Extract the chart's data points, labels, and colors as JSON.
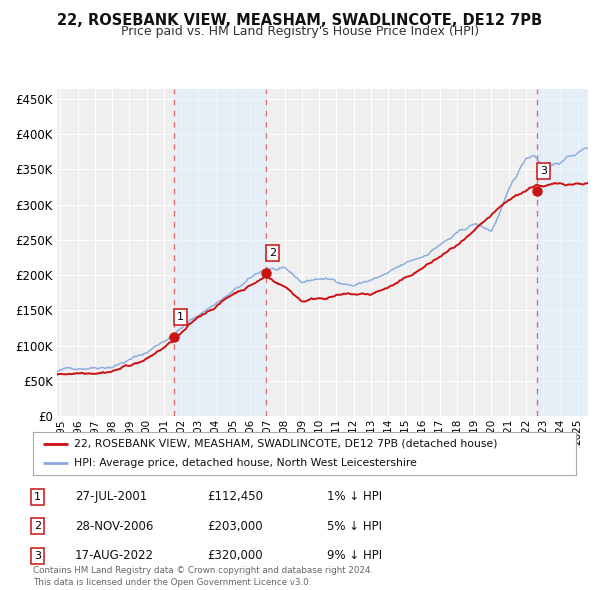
{
  "title": "22, ROSEBANK VIEW, MEASHAM, SWADLINCOTE, DE12 7PB",
  "subtitle": "Price paid vs. HM Land Registry's House Price Index (HPI)",
  "title_fontsize": 10.5,
  "subtitle_fontsize": 9.0,
  "bg_color": "#ffffff",
  "plot_bg_color": "#efefef",
  "grid_color": "#ffffff",
  "ytick_vals": [
    0,
    50000,
    100000,
    150000,
    200000,
    250000,
    300000,
    350000,
    400000,
    450000
  ],
  "ylim": [
    0,
    465000
  ],
  "xlim_start": 1994.8,
  "xlim_end": 2025.6,
  "xtick_years": [
    1995,
    1996,
    1997,
    1998,
    1999,
    2000,
    2001,
    2002,
    2003,
    2004,
    2005,
    2006,
    2007,
    2008,
    2009,
    2010,
    2011,
    2012,
    2013,
    2014,
    2015,
    2016,
    2017,
    2018,
    2019,
    2020,
    2021,
    2022,
    2023,
    2024,
    2025
  ],
  "sale_dates": [
    2001.573,
    2006.913,
    2022.633
  ],
  "sale_prices": [
    112450,
    203000,
    320000
  ],
  "sale_labels": [
    "1",
    "2",
    "3"
  ],
  "vline_color": "#dd4444",
  "vline_alpha": 0.75,
  "shade_color": "#ddeeff",
  "shade_alpha": 0.55,
  "red_line_color": "#cc1111",
  "blue_line_color": "#88aadd",
  "legend_label_red": "22, ROSEBANK VIEW, MEASHAM, SWADLINCOTE, DE12 7PB (detached house)",
  "legend_label_blue": "HPI: Average price, detached house, North West Leicestershire",
  "table_rows": [
    {
      "num": "1",
      "date": "27-JUL-2001",
      "price": "£112,450",
      "hpi": "1% ↓ HPI"
    },
    {
      "num": "2",
      "date": "28-NOV-2006",
      "price": "£203,000",
      "hpi": "5% ↓ HPI"
    },
    {
      "num": "3",
      "date": "17-AUG-2022",
      "price": "£320,000",
      "hpi": "9% ↓ HPI"
    }
  ],
  "footer_text": "Contains HM Land Registry data © Crown copyright and database right 2024.\nThis data is licensed under the Open Government Licence v3.0."
}
